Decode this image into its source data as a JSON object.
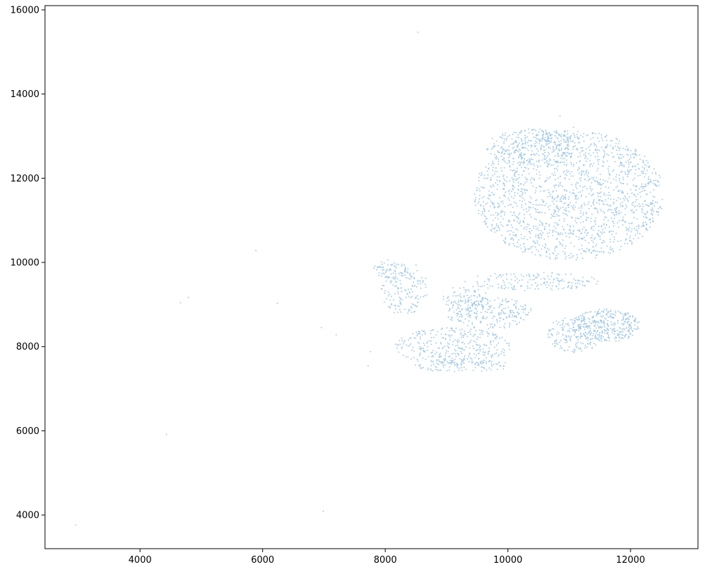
{
  "chart_data": {
    "type": "scatter",
    "title": "",
    "xlabel": "",
    "ylabel": "",
    "xlim": [
      2450,
      13100
    ],
    "ylim": [
      3200,
      16100
    ],
    "xticks": [
      4000,
      6000,
      8000,
      10000,
      12000
    ],
    "yticks": [
      4000,
      6000,
      8000,
      10000,
      12000,
      14000,
      16000
    ],
    "grid": false,
    "legend": "none",
    "point_color": "#9ec5e2",
    "outlier_points": [
      {
        "x": 2950,
        "y": 3760
      },
      {
        "x": 4430,
        "y": 5910
      },
      {
        "x": 4660,
        "y": 9040
      },
      {
        "x": 4790,
        "y": 9170
      },
      {
        "x": 5890,
        "y": 10280
      },
      {
        "x": 6240,
        "y": 9030
      },
      {
        "x": 6960,
        "y": 8450
      },
      {
        "x": 7200,
        "y": 8280
      },
      {
        "x": 6990,
        "y": 4090
      },
      {
        "x": 8530,
        "y": 15470
      },
      {
        "x": 10850,
        "y": 13480
      },
      {
        "x": 11070,
        "y": 13210
      },
      {
        "x": 7720,
        "y": 7540
      },
      {
        "x": 7760,
        "y": 7880
      }
    ],
    "clusters": [
      {
        "cx": 11000,
        "cy": 11600,
        "rx": 1550,
        "ry": 1550,
        "count": 1700
      },
      {
        "cx": 10400,
        "cy": 12750,
        "rx": 750,
        "ry": 420,
        "count": 260
      },
      {
        "cx": 10400,
        "cy": 9550,
        "rx": 1100,
        "ry": 220,
        "count": 170
      },
      {
        "cx": 11600,
        "cy": 8500,
        "rx": 550,
        "ry": 400,
        "count": 330
      },
      {
        "cx": 11100,
        "cy": 8300,
        "rx": 450,
        "ry": 450,
        "count": 170
      },
      {
        "cx": 9700,
        "cy": 8800,
        "rx": 700,
        "ry": 380,
        "count": 230
      },
      {
        "cx": 9100,
        "cy": 8000,
        "rx": 950,
        "ry": 450,
        "count": 330
      },
      {
        "cx": 9250,
        "cy": 7550,
        "rx": 800,
        "ry": 160,
        "count": 110
      },
      {
        "cx": 8300,
        "cy": 9400,
        "rx": 400,
        "ry": 650,
        "count": 170
      },
      {
        "cx": 8000,
        "cy": 9850,
        "rx": 200,
        "ry": 220,
        "count": 40
      },
      {
        "cx": 9300,
        "cy": 9100,
        "rx": 400,
        "ry": 350,
        "count": 100
      }
    ]
  }
}
